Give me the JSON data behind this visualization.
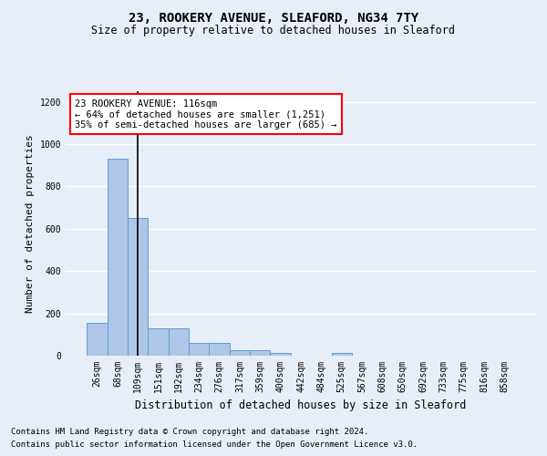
{
  "title": "23, ROOKERY AVENUE, SLEAFORD, NG34 7TY",
  "subtitle": "Size of property relative to detached houses in Sleaford",
  "xlabel": "Distribution of detached houses by size in Sleaford",
  "ylabel": "Number of detached properties",
  "footnote1": "Contains HM Land Registry data © Crown copyright and database right 2024.",
  "footnote2": "Contains public sector information licensed under the Open Government Licence v3.0.",
  "annotation_line1": "23 ROOKERY AVENUE: 116sqm",
  "annotation_line2": "← 64% of detached houses are smaller (1,251)",
  "annotation_line3": "35% of semi-detached houses are larger (685) →",
  "bar_labels": [
    "26sqm",
    "68sqm",
    "109sqm",
    "151sqm",
    "192sqm",
    "234sqm",
    "276sqm",
    "317sqm",
    "359sqm",
    "400sqm",
    "442sqm",
    "484sqm",
    "525sqm",
    "567sqm",
    "608sqm",
    "650sqm",
    "692sqm",
    "733sqm",
    "775sqm",
    "816sqm",
    "858sqm"
  ],
  "bar_values": [
    155,
    930,
    650,
    128,
    130,
    62,
    60,
    28,
    25,
    13,
    0,
    0,
    15,
    0,
    0,
    0,
    0,
    0,
    0,
    0,
    0
  ],
  "bar_color": "#aec6e8",
  "bar_edge_color": "#5a9fd4",
  "vline_x_index": 2,
  "vline_color": "#000000",
  "ylim": [
    0,
    1250
  ],
  "yticks": [
    0,
    200,
    400,
    600,
    800,
    1000,
    1200
  ],
  "bg_color": "#e8eef8",
  "plot_bg_color": "#e8eef8",
  "title_fontsize": 10,
  "subtitle_fontsize": 8.5,
  "ylabel_fontsize": 8,
  "xlabel_fontsize": 8.5,
  "tick_fontsize": 7,
  "footnote_fontsize": 6.5,
  "annotation_fontsize": 7.5
}
